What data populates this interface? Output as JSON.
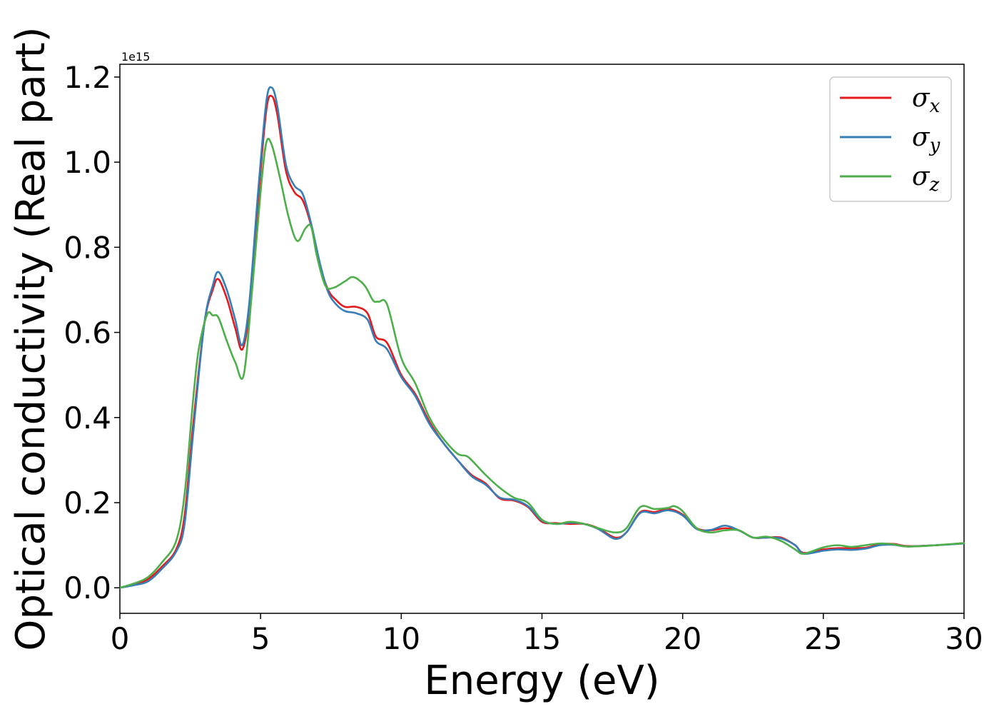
{
  "chart_data": {
    "type": "line",
    "title": "",
    "xlabel": "Energy (eV)",
    "ylabel": "Optical conductivity (Real part)",
    "y_offset_text": "1e15",
    "xlim": [
      0,
      30
    ],
    "ylim": [
      -0.06,
      1.23
    ],
    "xticks": [
      0,
      5,
      10,
      15,
      20,
      25,
      30
    ],
    "xtick_labels": [
      "0",
      "5",
      "10",
      "15",
      "20",
      "25",
      "30"
    ],
    "yticks": [
      0.0,
      0.2,
      0.4,
      0.6,
      0.8,
      1.0,
      1.2
    ],
    "ytick_labels": [
      "0.0",
      "0.2",
      "0.4",
      "0.6",
      "0.8",
      "1.0",
      "1.2"
    ],
    "grid": false,
    "legend_position": "top-right",
    "series": [
      {
        "name": "σx",
        "name_base": "σ",
        "name_sub": "x",
        "color": "#e41a1c",
        "x": [
          0,
          0.5,
          1,
          1.5,
          2,
          2.3,
          2.6,
          3,
          3.3,
          3.5,
          3.8,
          4.1,
          4.35,
          4.6,
          4.9,
          5.2,
          5.4,
          5.6,
          5.9,
          6.2,
          6.5,
          6.8,
          7.1,
          7.4,
          7.7,
          8,
          8.4,
          8.8,
          9.1,
          9.5,
          10,
          10.5,
          11,
          11.5,
          12,
          12.5,
          13,
          13.5,
          14,
          14.5,
          15,
          15.5,
          16,
          16.5,
          17,
          17.6,
          18,
          18.5,
          19,
          19.5,
          20,
          20.5,
          21,
          21.5,
          22,
          22.5,
          23,
          23.5,
          24,
          24.3,
          25,
          25.5,
          26,
          26.5,
          27,
          27.5,
          28,
          29,
          30
        ],
        "y": [
          0.0,
          0.008,
          0.02,
          0.05,
          0.09,
          0.17,
          0.38,
          0.62,
          0.7,
          0.725,
          0.68,
          0.61,
          0.56,
          0.65,
          0.9,
          1.12,
          1.155,
          1.11,
          0.98,
          0.93,
          0.91,
          0.85,
          0.76,
          0.7,
          0.675,
          0.66,
          0.66,
          0.645,
          0.59,
          0.575,
          0.5,
          0.455,
          0.39,
          0.34,
          0.3,
          0.265,
          0.245,
          0.21,
          0.205,
          0.19,
          0.155,
          0.152,
          0.15,
          0.15,
          0.14,
          0.118,
          0.13,
          0.178,
          0.178,
          0.185,
          0.172,
          0.14,
          0.135,
          0.14,
          0.135,
          0.118,
          0.118,
          0.118,
          0.1,
          0.082,
          0.09,
          0.093,
          0.093,
          0.094,
          0.102,
          0.103,
          0.098,
          0.1,
          0.105
        ]
      },
      {
        "name": "σy",
        "name_base": "σ",
        "name_sub": "y",
        "color": "#377eb8",
        "x": [
          0,
          0.5,
          1,
          1.5,
          2,
          2.3,
          2.6,
          3,
          3.3,
          3.5,
          3.8,
          4.1,
          4.35,
          4.6,
          4.9,
          5.2,
          5.4,
          5.6,
          5.9,
          6.2,
          6.5,
          6.8,
          7.1,
          7.4,
          7.7,
          8,
          8.4,
          8.8,
          9.1,
          9.5,
          10,
          10.5,
          11,
          11.5,
          12,
          12.5,
          13,
          13.5,
          14,
          14.5,
          15,
          15.5,
          16,
          16.5,
          17,
          17.6,
          18,
          18.5,
          19,
          19.5,
          20,
          20.5,
          21,
          21.5,
          22,
          22.5,
          23,
          23.5,
          24,
          24.3,
          25,
          25.5,
          26,
          26.5,
          27,
          27.5,
          28,
          29,
          30
        ],
        "y": [
          0.0,
          0.006,
          0.015,
          0.045,
          0.085,
          0.15,
          0.36,
          0.62,
          0.71,
          0.742,
          0.7,
          0.63,
          0.57,
          0.67,
          0.92,
          1.14,
          1.175,
          1.13,
          0.995,
          0.945,
          0.925,
          0.855,
          0.765,
          0.695,
          0.665,
          0.65,
          0.645,
          0.63,
          0.58,
          0.56,
          0.495,
          0.45,
          0.385,
          0.34,
          0.3,
          0.262,
          0.242,
          0.212,
          0.207,
          0.192,
          0.158,
          0.15,
          0.153,
          0.15,
          0.138,
          0.115,
          0.13,
          0.176,
          0.175,
          0.182,
          0.17,
          0.138,
          0.136,
          0.146,
          0.135,
          0.118,
          0.118,
          0.116,
          0.1,
          0.08,
          0.087,
          0.09,
          0.089,
          0.092,
          0.1,
          0.101,
          0.097,
          0.1,
          0.104
        ]
      },
      {
        "name": "σz",
        "name_base": "σ",
        "name_sub": "z",
        "color": "#4daf4a",
        "x": [
          0,
          0.5,
          1,
          1.5,
          2,
          2.3,
          2.6,
          2.8,
          3.1,
          3.3,
          3.5,
          3.8,
          4.1,
          4.4,
          4.7,
          5,
          5.2,
          5.4,
          5.7,
          6.0,
          6.3,
          6.6,
          6.8,
          7.0,
          7.3,
          7.6,
          8.0,
          8.3,
          8.7,
          9.0,
          9.2,
          9.5,
          10,
          10.5,
          11,
          11.5,
          12,
          12.3,
          12.5,
          13,
          13.5,
          14,
          14.5,
          15,
          15.5,
          16,
          16.5,
          17,
          17.6,
          18,
          18.5,
          19,
          19.5,
          19.7,
          20,
          20.5,
          21,
          21.5,
          22,
          22.5,
          23,
          23.5,
          24,
          24.3,
          25,
          25.5,
          26,
          26.5,
          27,
          27.5,
          28,
          29,
          30
        ],
        "y": [
          0.0,
          0.01,
          0.025,
          0.06,
          0.11,
          0.22,
          0.44,
          0.56,
          0.642,
          0.64,
          0.635,
          0.58,
          0.53,
          0.5,
          0.7,
          0.93,
          1.045,
          1.04,
          0.96,
          0.87,
          0.815,
          0.845,
          0.848,
          0.78,
          0.71,
          0.705,
          0.72,
          0.73,
          0.71,
          0.675,
          0.672,
          0.665,
          0.54,
          0.48,
          0.4,
          0.35,
          0.315,
          0.31,
          0.3,
          0.265,
          0.235,
          0.212,
          0.2,
          0.16,
          0.15,
          0.155,
          0.15,
          0.14,
          0.13,
          0.14,
          0.19,
          0.185,
          0.188,
          0.192,
          0.18,
          0.14,
          0.13,
          0.135,
          0.135,
          0.118,
          0.12,
          0.11,
          0.09,
          0.08,
          0.095,
          0.1,
          0.096,
          0.1,
          0.104,
          0.102,
          0.097,
          0.1,
          0.105
        ]
      }
    ]
  }
}
